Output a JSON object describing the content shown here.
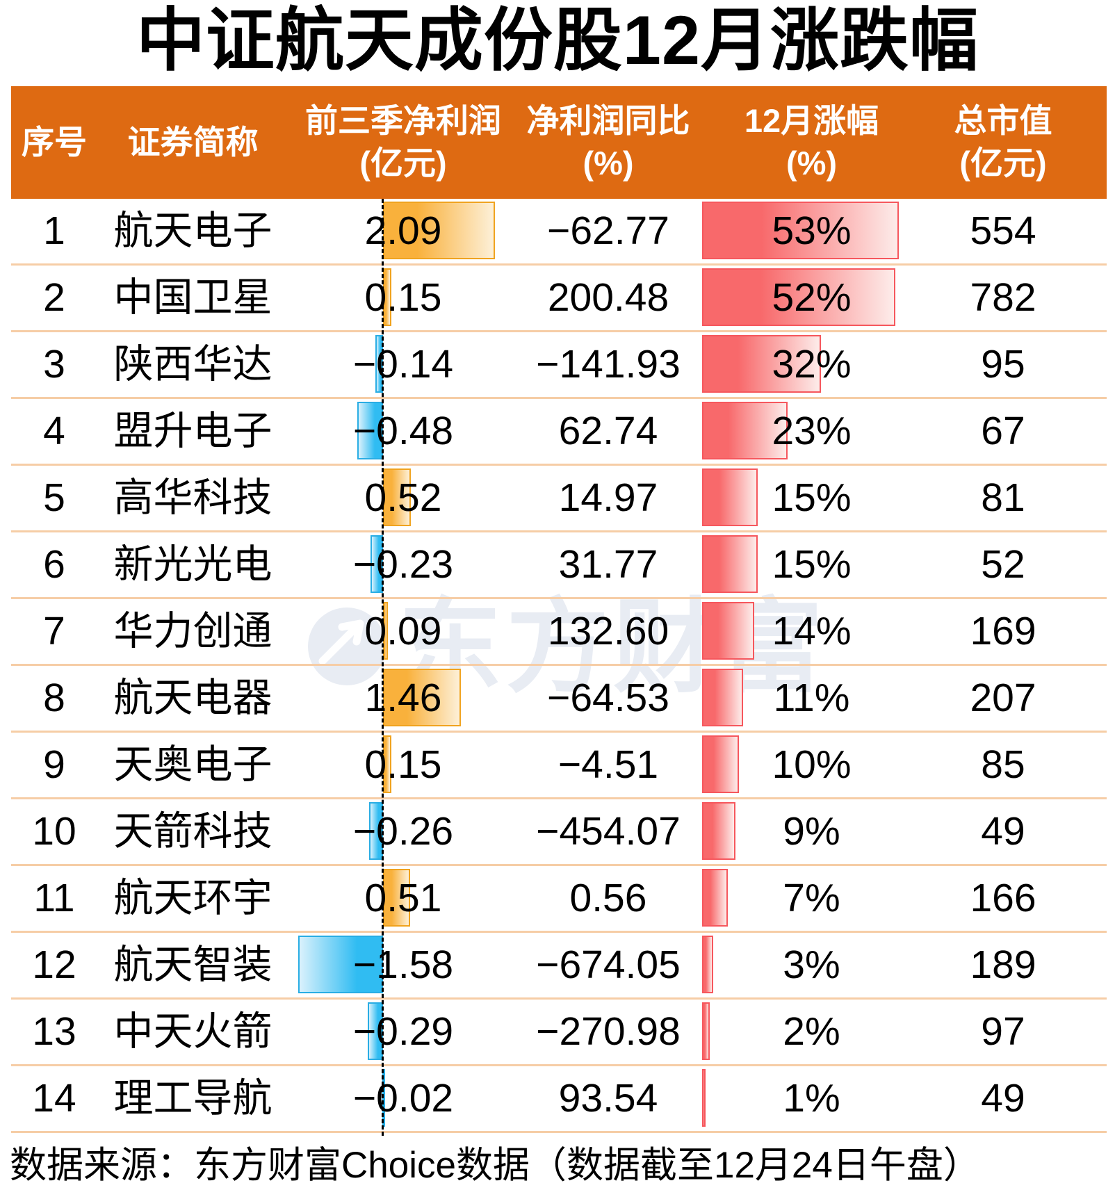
{
  "title": "中证航天成份股12月涨跌幅",
  "header": {
    "bg_color": "#DE6A12",
    "columns": [
      {
        "line1": "序号",
        "line2": ""
      },
      {
        "line1": "证券简称",
        "line2": ""
      },
      {
        "line1": "前三季净利润",
        "line2": "(亿元)"
      },
      {
        "line1": "净利润同比",
        "line2": "(%)"
      },
      {
        "line1": "12月涨幅",
        "line2": "(%)"
      },
      {
        "line1": "总市值",
        "line2": "(亿元)"
      }
    ]
  },
  "watermark": {
    "text": "东方财富"
  },
  "footer": {
    "text": "数据来源：东方财富Choice数据（数据截至12月24日午盘）"
  },
  "colors": {
    "title_color": "#000000",
    "header_bg": "#DE6A12",
    "row_separator": "#F6CDA6",
    "profit_positive_fill": "#F9B13C",
    "profit_positive_light": "#FDF0D8",
    "profit_positive_border": "#F0A31F",
    "profit_negative_fill": "#30BCF2",
    "profit_negative_light": "#D9F1FC",
    "profit_negative_border": "#29ADE4",
    "gain_fill": "#F8696B",
    "gain_light": "#FDECEA",
    "gain_border": "#F6575D",
    "watermark": "#E8ECF3"
  },
  "chart_data": {
    "type": "table",
    "title": "中证航天成份股12月涨跌幅",
    "columns": [
      "序号",
      "证券简称",
      "前三季净利润(亿元)",
      "净利润同比(%)",
      "12月涨幅(%)",
      "总市值(亿元)"
    ],
    "bar_columns": {
      "net_profit_q3": {
        "style": "diverging-bar",
        "positive_color": "#F9B13C",
        "negative_color": "#30BCF2",
        "axis": "dashed-zero-line"
      },
      "dec_gain_pct": {
        "style": "bar",
        "color": "#F8696B",
        "max": 53
      }
    },
    "rows": [
      {
        "seq": 1,
        "name": "航天电子",
        "net_profit_q3": 2.09,
        "yoy_pct": -62.77,
        "dec_gain_pct": 53,
        "market_cap": 554
      },
      {
        "seq": 2,
        "name": "中国卫星",
        "net_profit_q3": 0.15,
        "yoy_pct": 200.48,
        "dec_gain_pct": 52,
        "market_cap": 782
      },
      {
        "seq": 3,
        "name": "陕西华达",
        "net_profit_q3": -0.14,
        "yoy_pct": -141.93,
        "dec_gain_pct": 32,
        "market_cap": 95
      },
      {
        "seq": 4,
        "name": "盟升电子",
        "net_profit_q3": -0.48,
        "yoy_pct": 62.74,
        "dec_gain_pct": 23,
        "market_cap": 67
      },
      {
        "seq": 5,
        "name": "高华科技",
        "net_profit_q3": 0.52,
        "yoy_pct": 14.97,
        "dec_gain_pct": 15,
        "market_cap": 81
      },
      {
        "seq": 6,
        "name": "新光光电",
        "net_profit_q3": -0.23,
        "yoy_pct": 31.77,
        "dec_gain_pct": 15,
        "market_cap": 52
      },
      {
        "seq": 7,
        "name": "华力创通",
        "net_profit_q3": 0.09,
        "yoy_pct": 132.6,
        "dec_gain_pct": 14,
        "market_cap": 169
      },
      {
        "seq": 8,
        "name": "航天电器",
        "net_profit_q3": 1.46,
        "yoy_pct": -64.53,
        "dec_gain_pct": 11,
        "market_cap": 207
      },
      {
        "seq": 9,
        "name": "天奥电子",
        "net_profit_q3": 0.15,
        "yoy_pct": -4.51,
        "dec_gain_pct": 10,
        "market_cap": 85
      },
      {
        "seq": 10,
        "name": "天箭科技",
        "net_profit_q3": -0.26,
        "yoy_pct": -454.07,
        "dec_gain_pct": 9,
        "market_cap": 49
      },
      {
        "seq": 11,
        "name": "航天环宇",
        "net_profit_q3": 0.51,
        "yoy_pct": 0.56,
        "dec_gain_pct": 7,
        "market_cap": 166
      },
      {
        "seq": 12,
        "name": "航天智装",
        "net_profit_q3": -1.58,
        "yoy_pct": -674.05,
        "dec_gain_pct": 3,
        "market_cap": 189
      },
      {
        "seq": 13,
        "name": "中天火箭",
        "net_profit_q3": -0.29,
        "yoy_pct": -270.98,
        "dec_gain_pct": 2,
        "market_cap": 97
      },
      {
        "seq": 14,
        "name": "理工导航",
        "net_profit_q3": -0.02,
        "yoy_pct": 93.54,
        "dec_gain_pct": 1,
        "market_cap": 49
      }
    ]
  }
}
